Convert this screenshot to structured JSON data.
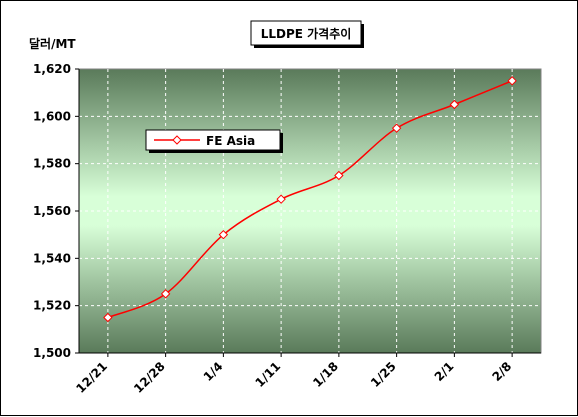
{
  "chart_data": {
    "type": "line",
    "title": "LLDPE 가격추이",
    "ylabel": "달러/MT",
    "xlabel": "",
    "categories": [
      "12/21",
      "12/28",
      "1/4",
      "1/11",
      "1/18",
      "1/25",
      "2/1",
      "2/8"
    ],
    "series": [
      {
        "name": "FE Asia",
        "values": [
          1515,
          1525,
          1550,
          1565,
          1575,
          1595,
          1605,
          1615
        ]
      }
    ],
    "ylim": [
      1500,
      1620
    ],
    "yticks": [
      1500,
      1520,
      1540,
      1560,
      1580,
      1600,
      1620
    ],
    "ytick_labels": [
      "1,500",
      "1,520",
      "1,540",
      "1,560",
      "1,580",
      "1,600",
      "1,620"
    ],
    "grid": true,
    "legend_position": "upper-left",
    "colors": {
      "series": "#ff0000",
      "marker_fill": "#ffffff",
      "plot_edge": "#5a7a5a",
      "plot_center": "#d8ffd8"
    }
  }
}
